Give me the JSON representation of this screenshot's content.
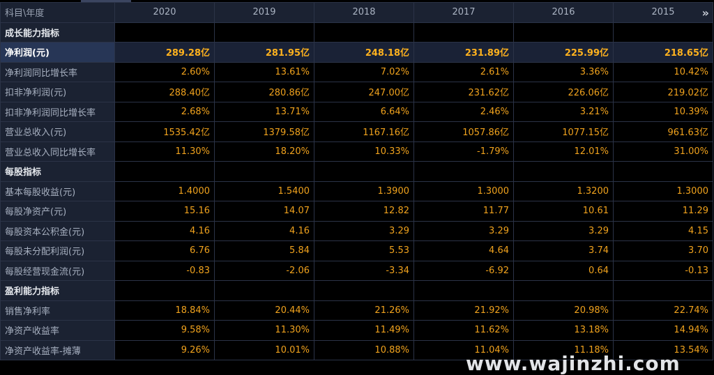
{
  "header": {
    "label": "科目\\年度",
    "years": [
      "2020",
      "2019",
      "2018",
      "2017",
      "2016",
      "2015"
    ],
    "more_icon": "»"
  },
  "rows": [
    {
      "label": "成长能力指标",
      "type": "section",
      "values": [
        "",
        "",
        "",
        "",
        "",
        ""
      ]
    },
    {
      "label": "净利润(元)",
      "type": "hl",
      "values": [
        "289.28亿",
        "281.95亿",
        "248.18亿",
        "231.89亿",
        "225.99亿",
        "218.65亿"
      ]
    },
    {
      "label": "净利润同比增长率",
      "type": "data",
      "values": [
        "2.60%",
        "13.61%",
        "7.02%",
        "2.61%",
        "3.36%",
        "10.42%"
      ]
    },
    {
      "label": "扣非净利润(元)",
      "type": "data",
      "values": [
        "288.40亿",
        "280.86亿",
        "247.00亿",
        "231.62亿",
        "226.06亿",
        "219.02亿"
      ]
    },
    {
      "label": "扣非净利润同比增长率",
      "type": "data",
      "values": [
        "2.68%",
        "13.71%",
        "6.64%",
        "2.46%",
        "3.21%",
        "10.39%"
      ]
    },
    {
      "label": "营业总收入(元)",
      "type": "data",
      "values": [
        "1535.42亿",
        "1379.58亿",
        "1167.16亿",
        "1057.86亿",
        "1077.15亿",
        "961.63亿"
      ]
    },
    {
      "label": "营业总收入同比增长率",
      "type": "data",
      "values": [
        "11.30%",
        "18.20%",
        "10.33%",
        "-1.79%",
        "12.01%",
        "31.00%"
      ]
    },
    {
      "label": "每股指标",
      "type": "section",
      "values": [
        "",
        "",
        "",
        "",
        "",
        ""
      ]
    },
    {
      "label": "基本每股收益(元)",
      "type": "data",
      "values": [
        "1.4000",
        "1.5400",
        "1.3900",
        "1.3000",
        "1.3200",
        "1.3000"
      ]
    },
    {
      "label": "每股净资产(元)",
      "type": "data",
      "values": [
        "15.16",
        "14.07",
        "12.82",
        "11.77",
        "10.61",
        "11.29"
      ]
    },
    {
      "label": "每股资本公积金(元)",
      "type": "data",
      "values": [
        "4.16",
        "4.16",
        "3.29",
        "3.29",
        "3.29",
        "4.15"
      ]
    },
    {
      "label": "每股未分配利润(元)",
      "type": "data",
      "values": [
        "6.76",
        "5.84",
        "5.53",
        "4.64",
        "3.74",
        "3.70"
      ]
    },
    {
      "label": "每股经营现金流(元)",
      "type": "data",
      "values": [
        "-0.83",
        "-2.06",
        "-3.34",
        "-6.92",
        "0.64",
        "-0.13"
      ]
    },
    {
      "label": "盈利能力指标",
      "type": "section",
      "values": [
        "",
        "",
        "",
        "",
        "",
        ""
      ]
    },
    {
      "label": "销售净利率",
      "type": "data",
      "values": [
        "18.84%",
        "20.44%",
        "21.26%",
        "21.92%",
        "20.98%",
        "22.74%"
      ]
    },
    {
      "label": "净资产收益率",
      "type": "data",
      "values": [
        "9.58%",
        "11.30%",
        "11.49%",
        "11.62%",
        "13.18%",
        "14.94%"
      ]
    },
    {
      "label": "净资产收益率-摊薄",
      "type": "data",
      "values": [
        "9.26%",
        "10.01%",
        "10.88%",
        "11.04%",
        "11.18%",
        "13.54%"
      ]
    }
  ],
  "watermark": "www.wajinzhi.com",
  "colors": {
    "value": "#f0a21d",
    "label_bg": "#1b2232",
    "highlight_bg": "#273656",
    "grid_line": "#2b3347"
  }
}
